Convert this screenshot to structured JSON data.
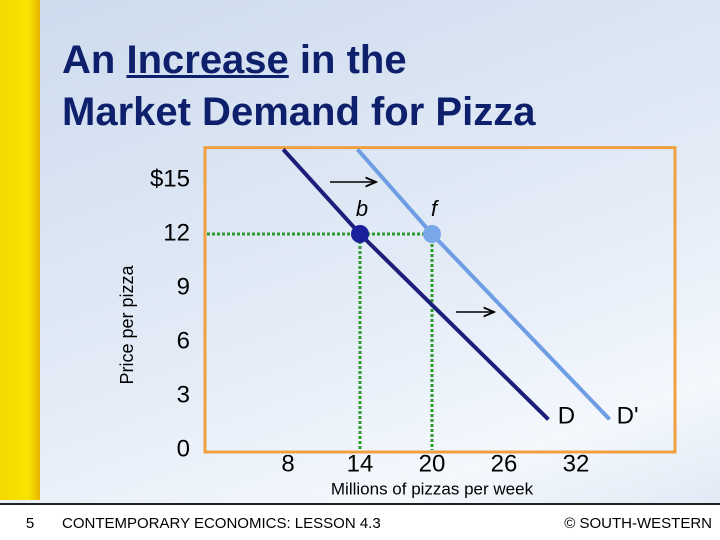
{
  "chart_data": {
    "type": "line",
    "title_lines": [
      [
        "An",
        "Increase",
        "in the"
      ],
      [
        "Market Demand for Pizza"
      ]
    ],
    "ylabel": "Price per pizza",
    "xlabel": "Millions of pizzas per week",
    "xlim": [
      1,
      40
    ],
    "ylim": [
      0,
      16.8
    ],
    "xticks": [
      8,
      14,
      20,
      26,
      32
    ],
    "yticks": [
      {
        "value": 15,
        "label": "$15"
      },
      12,
      9,
      6,
      3,
      0
    ],
    "series": [
      {
        "name": "D",
        "color": "#1b1f7a",
        "x": [
          7.6,
          14,
          29.7
        ],
        "values": [
          16.7,
          12,
          1.7
        ]
      },
      {
        "name": "D'",
        "color": "#6f9de3",
        "x": [
          13.8,
          20,
          34.8
        ],
        "values": [
          16.7,
          12,
          1.7
        ]
      }
    ],
    "points": [
      {
        "label": "b",
        "x": 14,
        "y": 12,
        "color": "#1b1f9a"
      },
      {
        "label": "f",
        "x": 20,
        "y": 12,
        "color": "#7aa6ea"
      }
    ],
    "guide_color": "#2e9a2e",
    "frame_color": "#f0a040"
  },
  "footer": {
    "page": "5",
    "left": "CONTEMPORARY ECONOMICS: LESSON 4.3",
    "right": "© SOUTH-WESTERN"
  }
}
